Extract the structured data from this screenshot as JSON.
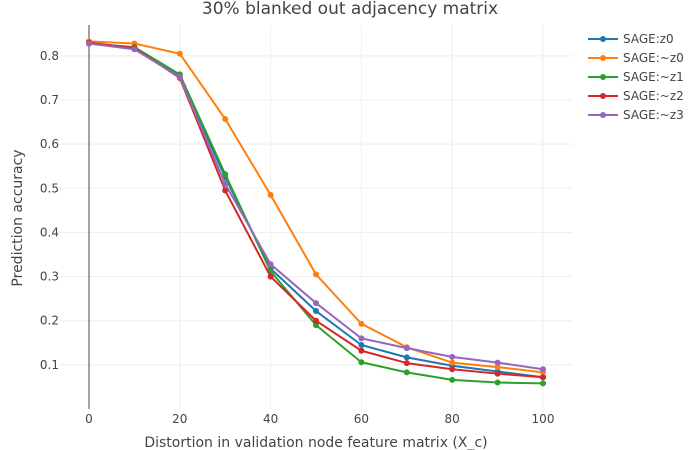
{
  "chart_data": {
    "type": "line",
    "title": "30% blanked out adjacency matrix",
    "xlabel": "Distortion in validation node feature matrix (X_c)",
    "ylabel": "Prediction accuracy",
    "xlim": [
      0,
      100
    ],
    "ylim": [
      0,
      0.87
    ],
    "x_ticks": [
      0,
      20,
      40,
      60,
      80,
      100
    ],
    "y_ticks": [
      0.1,
      0.2,
      0.3,
      0.4,
      0.5,
      0.6,
      0.7,
      0.8
    ],
    "x_tick_labels": [
      "0",
      "20",
      "40",
      "60",
      "80",
      "100"
    ],
    "y_tick_labels": [
      "0.1",
      "0.2",
      "0.3",
      "0.4",
      "0.5",
      "0.6",
      "0.7",
      "0.8"
    ],
    "grid": true,
    "legend_position": "top-right",
    "x": [
      0,
      10,
      20,
      30,
      40,
      50,
      60,
      70,
      80,
      90,
      100
    ],
    "series": [
      {
        "name": "SAGE:z0",
        "color": "#1f77b4",
        "values": [
          0.828,
          0.818,
          0.755,
          0.525,
          0.318,
          0.222,
          0.145,
          0.117,
          0.098,
          0.085,
          0.072
        ]
      },
      {
        "name": "SAGE:~z0",
        "color": "#ff7f0e",
        "values": [
          0.833,
          0.828,
          0.805,
          0.657,
          0.485,
          0.305,
          0.193,
          0.14,
          0.105,
          0.095,
          0.083
        ]
      },
      {
        "name": "SAGE:~z1",
        "color": "#2ca02c",
        "values": [
          0.828,
          0.82,
          0.758,
          0.532,
          0.312,
          0.19,
          0.106,
          0.083,
          0.066,
          0.06,
          0.058
        ]
      },
      {
        "name": "SAGE:~z2",
        "color": "#d62728",
        "values": [
          0.83,
          0.818,
          0.75,
          0.495,
          0.3,
          0.2,
          0.132,
          0.104,
          0.09,
          0.08,
          0.072
        ]
      },
      {
        "name": "SAGE:~z3",
        "color": "#9467bd",
        "values": [
          0.828,
          0.815,
          0.752,
          0.51,
          0.328,
          0.24,
          0.16,
          0.138,
          0.118,
          0.105,
          0.09
        ]
      }
    ]
  }
}
